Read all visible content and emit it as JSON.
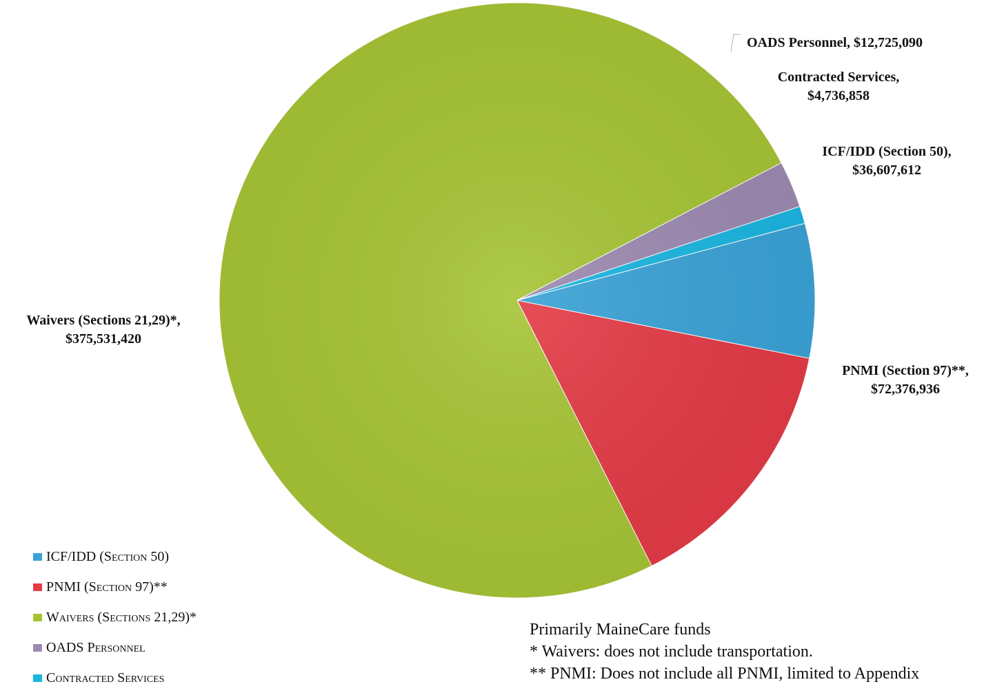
{
  "chart_data": {
    "type": "pie",
    "slices": [
      {
        "label": "ICF/IDD (Section 50)",
        "callout_line1": "ICF/IDD (Section 50),",
        "callout_line2": "$36,607,612",
        "value": 36607612,
        "color": "#3aa2d6"
      },
      {
        "label": "PNMI (Section 97)**",
        "callout_line1": "PNMI (Section 97)**,",
        "callout_line2": "$72,376,936",
        "value": 72376936,
        "color": "#e33b46"
      },
      {
        "label": "Waivers (Sections 21,29)*",
        "callout_line1": "Waivers (Sections 21,29)*,",
        "callout_line2": "$375,531,420",
        "value": 375531420,
        "color": "#a6c335"
      },
      {
        "label": "OADS Personnel",
        "callout_line1": "OADS Personnel,  $12,725,090",
        "callout_line2": "",
        "value": 12725090,
        "color": "#9c8ab0"
      },
      {
        "label": "Contracted Services",
        "callout_line1": "Contracted Services,",
        "callout_line2": "$4,736,858",
        "value": 4736858,
        "color": "#1bb5e0"
      }
    ],
    "legend_position": "bottom-left"
  },
  "notes": {
    "line1": "Primarily MaineCare funds",
    "line2": "* Waivers: does not include transportation.",
    "line3": "** PNMI: Does not include all PNMI, limited to Appendix"
  }
}
